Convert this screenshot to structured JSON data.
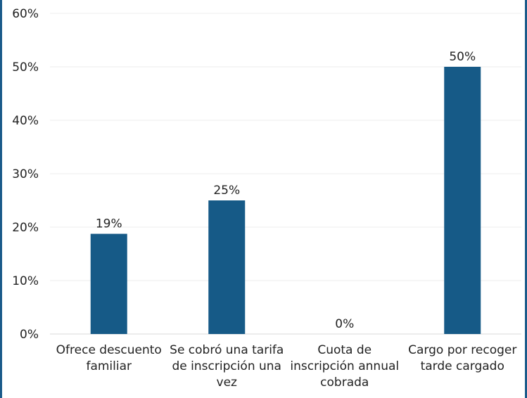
{
  "chart_data": {
    "type": "bar",
    "title": "",
    "xlabel": "",
    "ylabel": "",
    "ylim": [
      0,
      60
    ],
    "yticks": [
      0,
      10,
      20,
      30,
      40,
      50,
      60
    ],
    "y_tick_labels": [
      "0%",
      "10%",
      "20%",
      "30%",
      "40%",
      "50%",
      "60%"
    ],
    "grid": true,
    "legend": "none",
    "categories": [
      "Ofrece descuento familiar",
      "Se cobró una tarifa de inscripción una vez",
      "Cuota de inscripción annual cobrada",
      "Cargo por recoger tarde cargado"
    ],
    "category_label_lines": [
      [
        "Ofrece descuento",
        "familiar"
      ],
      [
        "Se cobró una tarifa",
        "de inscripción una",
        "vez"
      ],
      [
        "Cuota de",
        "inscripción annual",
        "cobrada"
      ],
      [
        "Cargo por recoger",
        "tarde cargado"
      ]
    ],
    "values": [
      18.75,
      25,
      0,
      50
    ],
    "data_labels": [
      "19%",
      "25%",
      "0%",
      "50%"
    ],
    "bar_color": "#165a87"
  }
}
